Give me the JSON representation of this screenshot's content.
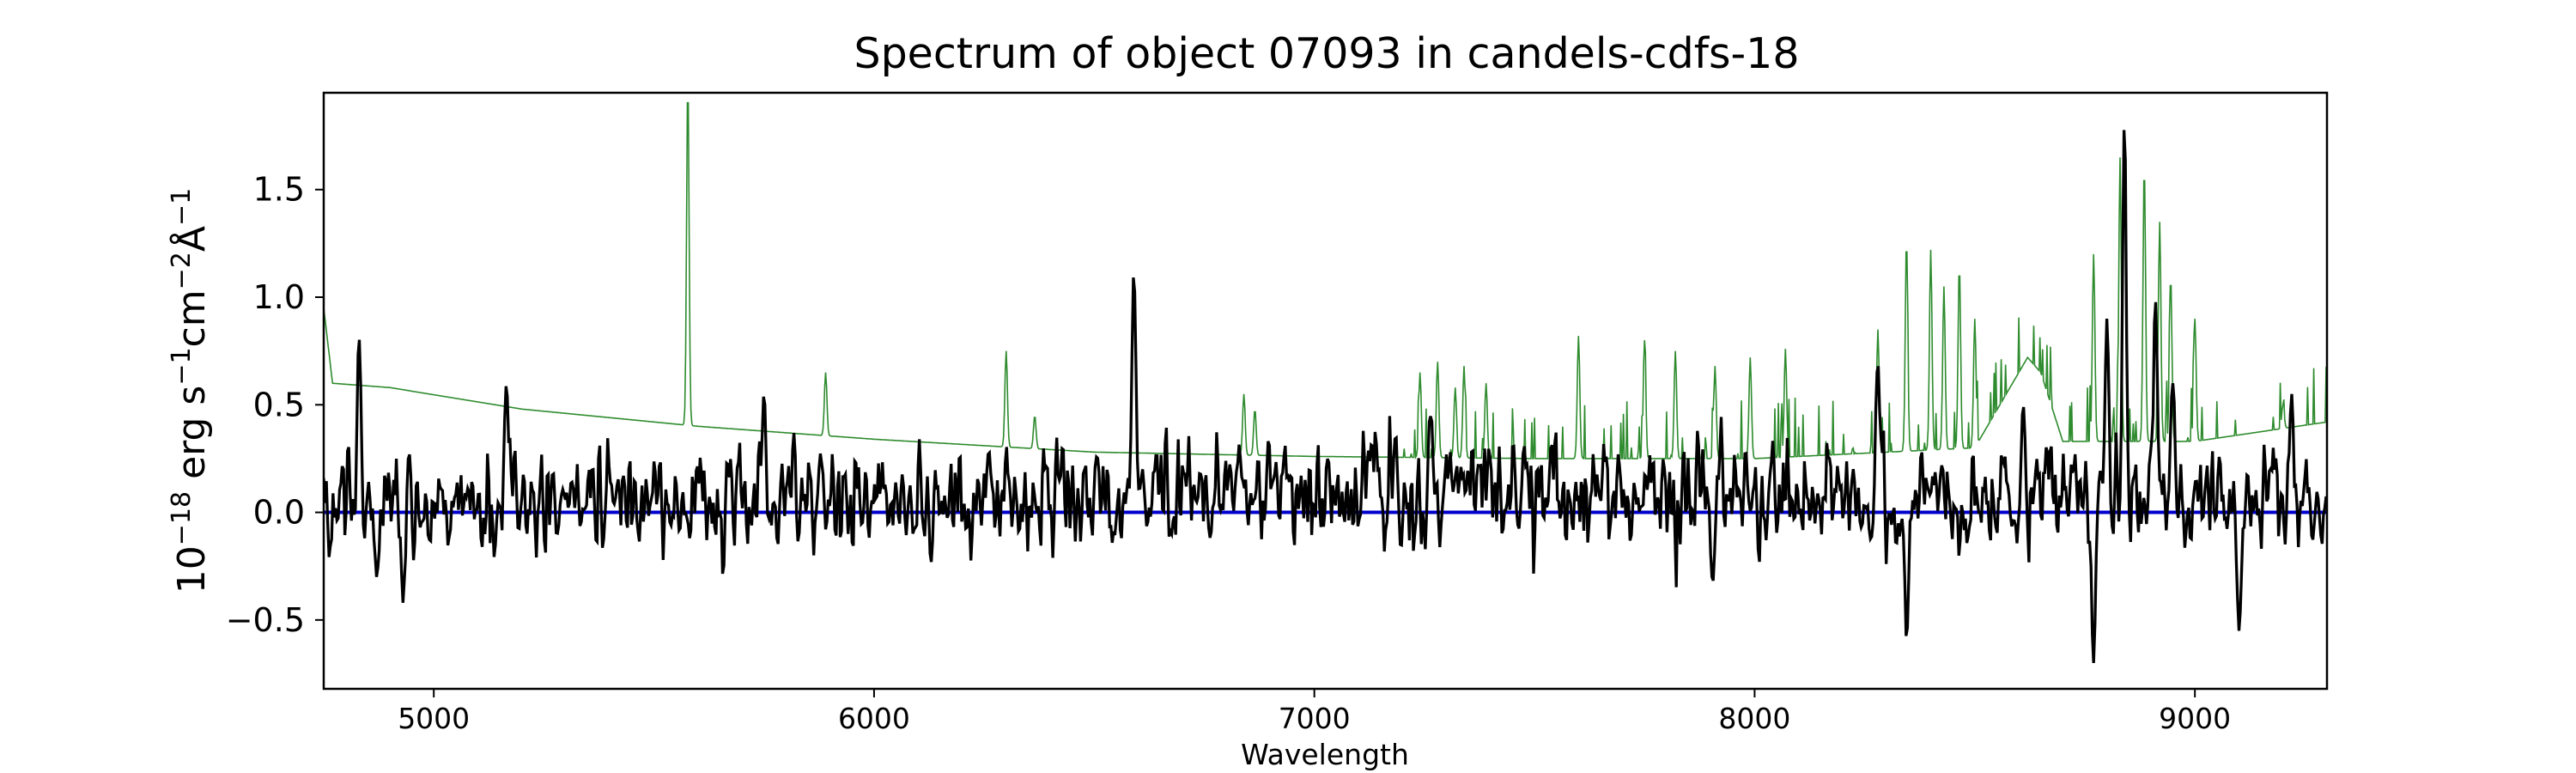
{
  "chart_data": {
    "type": "line",
    "title": "Spectrum of object 07093 in candels-cdfs-18",
    "xlabel": "Wavelength",
    "ylabel": "10$^{-18}$ erg s$^{-1}$cm$^{-2}$Å$^{-1}$",
    "ylabel_parts": [
      {
        "text": "10",
        "sup": false
      },
      {
        "text": "−18",
        "sup": true
      },
      {
        "text": " erg s",
        "sup": false
      },
      {
        "text": "−1",
        "sup": true
      },
      {
        "text": "cm",
        "sup": false
      },
      {
        "text": "−2",
        "sup": true
      },
      {
        "text": "Å",
        "sup": false
      },
      {
        "text": "−1",
        "sup": true
      }
    ],
    "xlim": [
      4750,
      9300
    ],
    "ylim": [
      -0.82,
      1.95
    ],
    "xticks": [
      5000,
      6000,
      7000,
      8000,
      9000
    ],
    "xtick_labels": [
      "5000",
      "6000",
      "7000",
      "8000",
      "9000"
    ],
    "yticks": [
      -0.5,
      0.0,
      0.5,
      1.0,
      1.5
    ],
    "ytick_labels": [
      "−0.5",
      "0.0",
      "0.5",
      "1.0",
      "1.5"
    ],
    "grid": false,
    "colors": {
      "flux": "#000000",
      "error": "#2e8b2e",
      "zero": "#0000cc"
    },
    "series": [
      {
        "role": "flux",
        "noise": {
          "amplitude": 0.17,
          "seed": 7093,
          "step": 3
        },
        "baseline": [
          {
            "x": 4750,
            "y": 0.05
          },
          {
            "x": 5500,
            "y": 0.05
          },
          {
            "x": 6500,
            "y": 0.05
          },
          {
            "x": 7000,
            "y": 0.12
          },
          {
            "x": 7500,
            "y": 0.1
          },
          {
            "x": 8300,
            "y": 0.06
          },
          {
            "x": 9300,
            "y": 0.05
          }
        ],
        "features": [
          {
            "x": 4830,
            "y": 0.82
          },
          {
            "x": 4870,
            "y": -0.3
          },
          {
            "x": 4930,
            "y": -0.42
          },
          {
            "x": 5165,
            "y": 0.6
          },
          {
            "x": 5750,
            "y": 0.55
          },
          {
            "x": 6590,
            "y": 1.12
          },
          {
            "x": 6610,
            "y": 0.2
          },
          {
            "x": 8280,
            "y": 0.7
          },
          {
            "x": 8345,
            "y": -0.6
          },
          {
            "x": 7905,
            "y": -0.33
          },
          {
            "x": 8840,
            "y": 1.82
          },
          {
            "x": 8770,
            "y": -0.7
          },
          {
            "x": 8800,
            "y": 0.9
          },
          {
            "x": 8910,
            "y": 1.0
          },
          {
            "x": 8950,
            "y": 0.6
          },
          {
            "x": 9100,
            "y": -0.55
          },
          {
            "x": 9220,
            "y": 0.55
          },
          {
            "x": 8610,
            "y": 0.5
          }
        ]
      },
      {
        "role": "error",
        "continuum": [
          {
            "x": 4750,
            "y": 0.95
          },
          {
            "x": 4770,
            "y": 0.6
          },
          {
            "x": 4900,
            "y": 0.58
          },
          {
            "x": 5200,
            "y": 0.48
          },
          {
            "x": 5600,
            "y": 0.4
          },
          {
            "x": 6000,
            "y": 0.34
          },
          {
            "x": 6500,
            "y": 0.28
          },
          {
            "x": 7000,
            "y": 0.26
          },
          {
            "x": 7500,
            "y": 0.25
          },
          {
            "x": 8000,
            "y": 0.25
          },
          {
            "x": 8500,
            "y": 0.3
          },
          {
            "x": 8620,
            "y": 0.72
          },
          {
            "x": 8650,
            "y": 0.65
          },
          {
            "x": 8700,
            "y": 0.33
          },
          {
            "x": 9000,
            "y": 0.33
          },
          {
            "x": 9300,
            "y": 0.42
          }
        ],
        "lines": [
          {
            "x": 5577,
            "y": 2.0
          },
          {
            "x": 5890,
            "y": 0.65
          },
          {
            "x": 6300,
            "y": 0.75
          },
          {
            "x": 6365,
            "y": 0.45
          },
          {
            "x": 6840,
            "y": 0.55
          },
          {
            "x": 6865,
            "y": 0.48
          },
          {
            "x": 7240,
            "y": 0.65
          },
          {
            "x": 7280,
            "y": 0.7
          },
          {
            "x": 7320,
            "y": 0.58
          },
          {
            "x": 7340,
            "y": 0.68
          },
          {
            "x": 7390,
            "y": 0.6
          },
          {
            "x": 7600,
            "y": 0.82
          },
          {
            "x": 7750,
            "y": 0.8
          },
          {
            "x": 7820,
            "y": 0.75
          },
          {
            "x": 7910,
            "y": 0.68
          },
          {
            "x": 7990,
            "y": 0.72
          },
          {
            "x": 8070,
            "y": 0.76
          },
          {
            "x": 8280,
            "y": 0.85
          },
          {
            "x": 8345,
            "y": 1.27
          },
          {
            "x": 8400,
            "y": 1.22
          },
          {
            "x": 8430,
            "y": 1.05
          },
          {
            "x": 8465,
            "y": 1.15
          },
          {
            "x": 8500,
            "y": 0.9
          },
          {
            "x": 8770,
            "y": 1.2
          },
          {
            "x": 8830,
            "y": 1.65
          },
          {
            "x": 8885,
            "y": 1.62
          },
          {
            "x": 8920,
            "y": 1.35
          },
          {
            "x": 8945,
            "y": 1.1
          },
          {
            "x": 9000,
            "y": 0.9
          },
          {
            "x": 9200,
            "y": 0.5
          }
        ]
      },
      {
        "role": "zero",
        "x": [
          4750,
          9300
        ],
        "y": [
          0,
          0
        ]
      }
    ]
  }
}
